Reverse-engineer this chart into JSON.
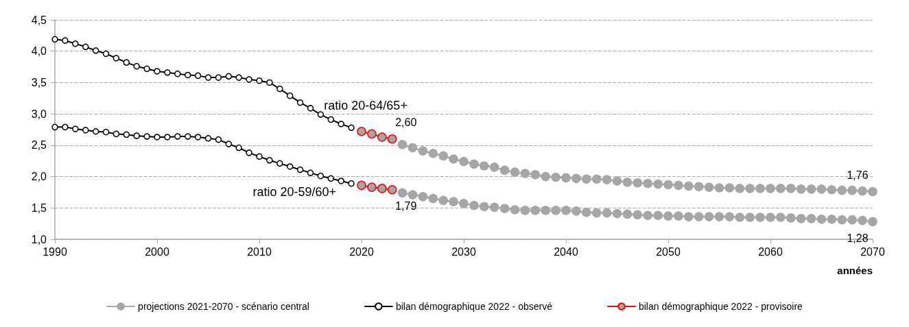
{
  "chart_data": {
    "type": "line",
    "xlabel": "années",
    "xlim": [
      1990,
      2070
    ],
    "xticks": [
      1990,
      2000,
      2010,
      2020,
      2030,
      2040,
      2050,
      2060,
      2070
    ],
    "ylim": [
      1.0,
      4.5
    ],
    "yticks": [
      {
        "value": 1.0,
        "label": "1,0"
      },
      {
        "value": 1.5,
        "label": "1,5"
      },
      {
        "value": 2.0,
        "label": "2,0"
      },
      {
        "value": 2.5,
        "label": "2,5"
      },
      {
        "value": 3.0,
        "label": "3,0"
      },
      {
        "value": 3.5,
        "label": "3,5"
      },
      {
        "value": 4.0,
        "label": "4,0"
      },
      {
        "value": 4.5,
        "label": "4,5"
      }
    ],
    "grid": "y",
    "legend": "bottom",
    "marker": "circle",
    "line_style": "solid",
    "annotations": [
      {
        "text": "ratio 20-64/65+",
        "x": 2017,
        "y": 2.91
      },
      {
        "text": "ratio 20-59/60+",
        "x": 2019,
        "y": 1.89
      }
    ],
    "series": [
      {
        "name": "projections 2021-2070 - scénario central",
        "color": "#a6a6a6",
        "x": [
          2024,
          2025,
          2026,
          2027,
          2028,
          2029,
          2030,
          2031,
          2032,
          2033,
          2034,
          2035,
          2036,
          2037,
          2038,
          2039,
          2040,
          2041,
          2042,
          2043,
          2044,
          2045,
          2046,
          2047,
          2048,
          2049,
          2050,
          2051,
          2052,
          2053,
          2054,
          2055,
          2056,
          2057,
          2058,
          2059,
          2060,
          2061,
          2062,
          2063,
          2064,
          2065,
          2066,
          2067,
          2068,
          2069,
          2070
        ],
        "values": [
          2.51,
          2.46,
          2.41,
          2.37,
          2.33,
          2.28,
          2.24,
          2.2,
          2.17,
          2.15,
          2.1,
          2.07,
          2.05,
          2.03,
          2.0,
          1.99,
          1.98,
          1.97,
          1.96,
          1.96,
          1.95,
          1.93,
          1.91,
          1.9,
          1.89,
          1.88,
          1.87,
          1.86,
          1.85,
          1.84,
          1.83,
          1.82,
          1.82,
          1.81,
          1.81,
          1.81,
          1.81,
          1.81,
          1.81,
          1.8,
          1.8,
          1.8,
          1.79,
          1.78,
          1.78,
          1.77,
          1.76
        ],
        "value_labels": [
          null,
          null,
          null,
          null,
          null,
          null,
          null,
          null,
          null,
          null,
          null,
          null,
          null,
          null,
          null,
          null,
          null,
          null,
          null,
          null,
          null,
          null,
          null,
          null,
          null,
          null,
          null,
          null,
          null,
          null,
          null,
          null,
          null,
          null,
          null,
          null,
          null,
          null,
          null,
          null,
          null,
          null,
          null,
          null,
          null,
          null,
          "1,76"
        ]
      },
      {
        "color": "#a6a6a6",
        "x": [
          2024,
          2025,
          2026,
          2027,
          2028,
          2029,
          2030,
          2031,
          2032,
          2033,
          2034,
          2035,
          2036,
          2037,
          2038,
          2039,
          2040,
          2041,
          2042,
          2043,
          2044,
          2045,
          2046,
          2047,
          2048,
          2049,
          2050,
          2051,
          2052,
          2053,
          2054,
          2055,
          2056,
          2057,
          2058,
          2059,
          2060,
          2061,
          2062,
          2063,
          2064,
          2065,
          2066,
          2067,
          2068,
          2069,
          2070
        ],
        "values": [
          1.74,
          1.71,
          1.68,
          1.65,
          1.62,
          1.6,
          1.57,
          1.54,
          1.52,
          1.51,
          1.49,
          1.47,
          1.46,
          1.46,
          1.46,
          1.46,
          1.46,
          1.45,
          1.43,
          1.42,
          1.42,
          1.41,
          1.4,
          1.39,
          1.38,
          1.38,
          1.37,
          1.37,
          1.36,
          1.36,
          1.36,
          1.36,
          1.36,
          1.35,
          1.35,
          1.35,
          1.35,
          1.35,
          1.34,
          1.33,
          1.33,
          1.32,
          1.32,
          1.31,
          1.31,
          1.3,
          1.28
        ],
        "value_labels": [
          null,
          null,
          null,
          null,
          null,
          null,
          null,
          null,
          null,
          null,
          null,
          null,
          null,
          null,
          null,
          null,
          null,
          null,
          null,
          null,
          null,
          null,
          null,
          null,
          null,
          null,
          null,
          null,
          null,
          null,
          null,
          null,
          null,
          null,
          null,
          null,
          null,
          null,
          null,
          null,
          null,
          null,
          null,
          null,
          null,
          null,
          "1,28"
        ]
      },
      {
        "name": "bilan démographique 2022 - observé",
        "color": "#000000",
        "x": [
          1990,
          1991,
          1992,
          1993,
          1994,
          1995,
          1996,
          1997,
          1998,
          1999,
          2000,
          2001,
          2002,
          2003,
          2004,
          2005,
          2006,
          2007,
          2008,
          2009,
          2010,
          2011,
          2012,
          2013,
          2014,
          2015,
          2016,
          2017,
          2018,
          2019
        ],
        "values": [
          4.19,
          4.17,
          4.12,
          4.07,
          4.01,
          3.96,
          3.89,
          3.82,
          3.76,
          3.72,
          3.68,
          3.66,
          3.64,
          3.62,
          3.61,
          3.58,
          3.58,
          3.6,
          3.58,
          3.55,
          3.53,
          3.5,
          3.4,
          3.29,
          3.18,
          3.09,
          2.99,
          2.91,
          2.84,
          2.78
        ]
      },
      {
        "color": "#000000",
        "x": [
          1990,
          1991,
          1992,
          1993,
          1994,
          1995,
          1996,
          1997,
          1998,
          1999,
          2000,
          2001,
          2002,
          2003,
          2004,
          2005,
          2006,
          2007,
          2008,
          2009,
          2010,
          2011,
          2012,
          2013,
          2014,
          2015,
          2016,
          2017,
          2018,
          2019
        ],
        "values": [
          2.79,
          2.79,
          2.76,
          2.74,
          2.72,
          2.71,
          2.68,
          2.67,
          2.65,
          2.64,
          2.63,
          2.63,
          2.64,
          2.64,
          2.63,
          2.61,
          2.59,
          2.52,
          2.46,
          2.38,
          2.32,
          2.26,
          2.21,
          2.16,
          2.11,
          2.06,
          2.01,
          1.97,
          1.93,
          1.89
        ]
      },
      {
        "name": "bilan démographique 2022 - provisoire",
        "color": "#ff0000",
        "x": [
          2020,
          2021,
          2022,
          2023
        ],
        "values": [
          2.72,
          2.68,
          2.63,
          2.6
        ],
        "value_labels": [
          null,
          null,
          null,
          "2,60"
        ]
      },
      {
        "color": "#ff0000",
        "x": [
          2020,
          2021,
          2022,
          2023
        ],
        "values": [
          1.86,
          1.83,
          1.81,
          1.79
        ],
        "value_labels": [
          null,
          null,
          null,
          "1,79"
        ]
      }
    ]
  }
}
